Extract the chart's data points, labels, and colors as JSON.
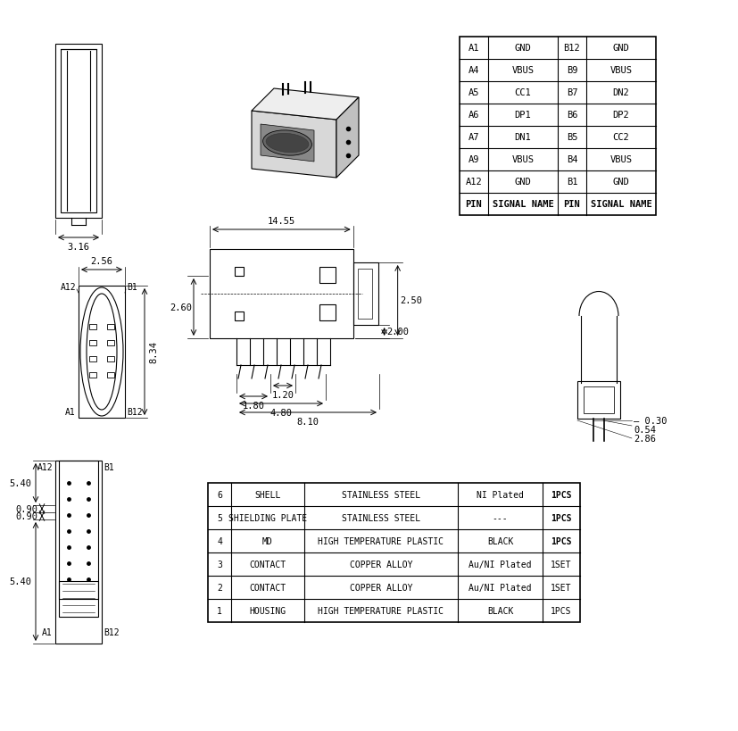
{
  "bg_color": "#ffffff",
  "line_color": "#000000",
  "pin_table": {
    "headers": [
      "PIN",
      "SIGNAL NAME",
      "PIN",
      "SIGNAL NAME"
    ],
    "rows": [
      [
        "A1",
        "GND",
        "B12",
        "GND"
      ],
      [
        "A4",
        "VBUS",
        "B9",
        "VBUS"
      ],
      [
        "A5",
        "CC1",
        "B7",
        "DN2"
      ],
      [
        "A6",
        "DP1",
        "B6",
        "DP2"
      ],
      [
        "A7",
        "DN1",
        "B5",
        "CC2"
      ],
      [
        "A9",
        "VBUS",
        "B4",
        "VBUS"
      ],
      [
        "A12",
        "GND",
        "B1",
        "GND"
      ]
    ]
  },
  "bom_table": {
    "rows": [
      [
        "6",
        "SHELL",
        "STAINLESS STEEL",
        "NI Plated",
        "1PCS"
      ],
      [
        "5",
        "SHIELDING PLATE",
        "STAINLESS STEEL",
        "---",
        "1PCS"
      ],
      [
        "4",
        "MD",
        "HIGH TEMPERATURE PLASTIC",
        "BLACK",
        "1PCS"
      ],
      [
        "3",
        "CONTACT",
        "COPPER ALLOY",
        "Au/NI Plated",
        "1SET"
      ],
      [
        "2",
        "CONTACT",
        "COPPER ALLOY",
        "Au/NI Plated",
        "1SET"
      ],
      [
        "1",
        "HOUSING",
        "HIGH TEMPERATURE PLASTIC",
        "BLACK",
        "1PCS"
      ]
    ]
  },
  "dims": {
    "width_top": "3.16",
    "width_front": "2.56",
    "height_front": "8.34",
    "side_length": "14.55",
    "side_height1": "2.60",
    "side_dim1": "1.80",
    "side_dim2": "1.20",
    "side_dim3": "8.10",
    "side_dim4": "4.80",
    "side_h2": "2.00",
    "side_h3": "2.50",
    "rear_w1": "0.30",
    "rear_w2": "0.54",
    "rear_w3": "2.86",
    "bot_h1": "5.40",
    "bot_h2": "0.90",
    "bot_h3": "0.90",
    "bot_h4": "5.40"
  }
}
